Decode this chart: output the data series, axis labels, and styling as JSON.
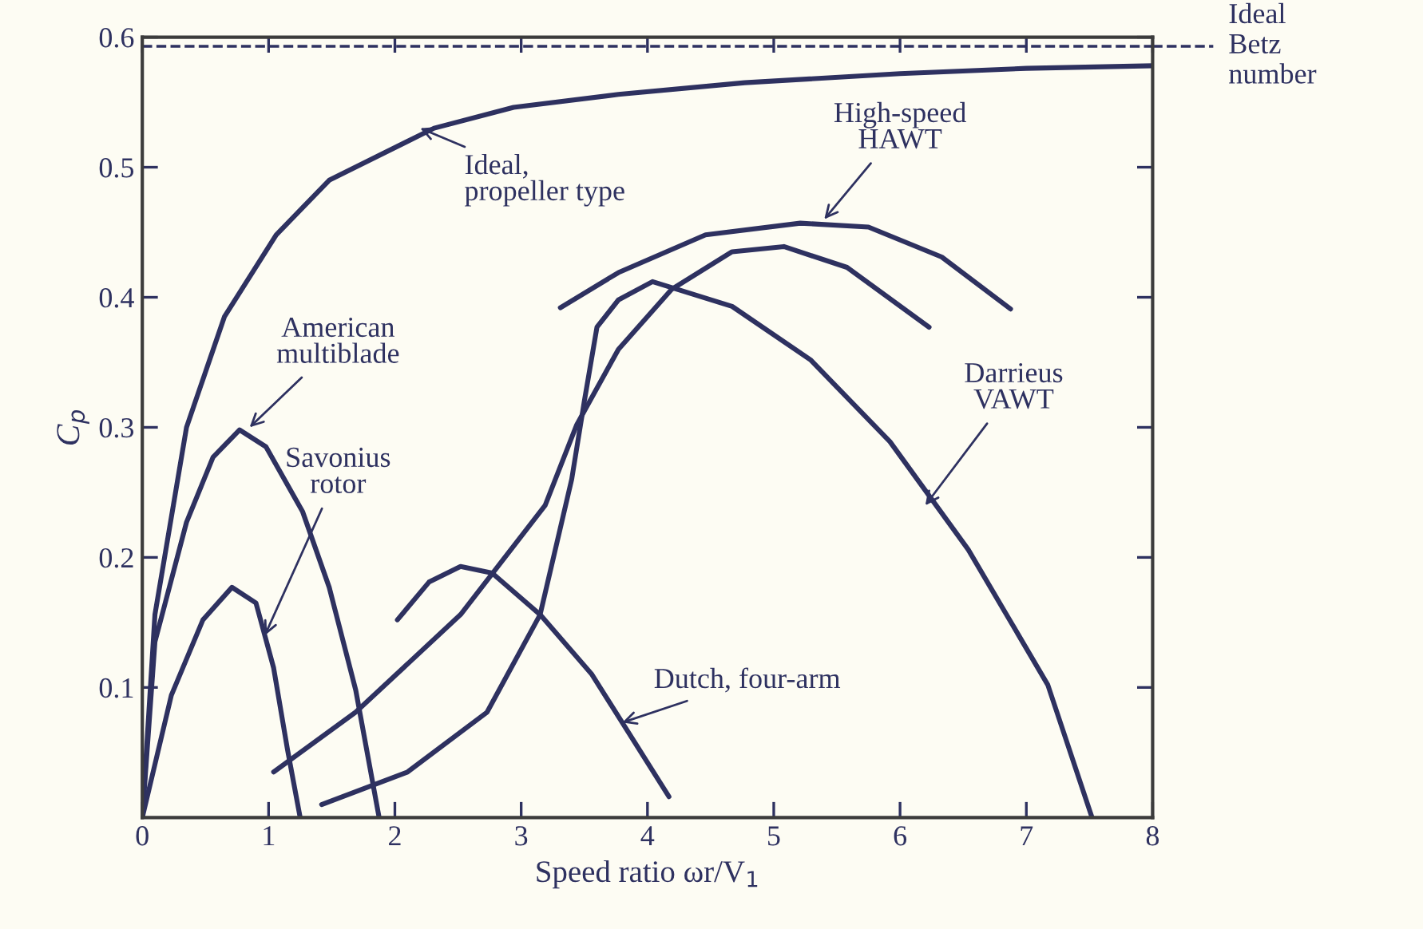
{
  "chart_data": {
    "type": "line",
    "xlabel": "Speed ratio ωr/V$_{1}$",
    "ylabel": "C$_{p}$",
    "xlim": [
      0,
      8
    ],
    "ylim": [
      0,
      0.6
    ],
    "xticks": [
      0,
      1,
      2,
      3,
      4,
      5,
      6,
      7,
      8
    ],
    "yticks": [
      0.1,
      0.2,
      0.3,
      0.4,
      0.5,
      0.6
    ],
    "grid": false,
    "legend": false,
    "marker": "none",
    "line_style": "solid",
    "series": [
      {
        "color": "#2e3160",
        "x": [
          0,
          0.1,
          0.35,
          0.65,
          1.06,
          1.48,
          2.31,
          2.94,
          3.77,
          4.77,
          6,
          7,
          8
        ],
        "values": [
          0,
          0.156,
          0.3,
          0.385,
          0.448,
          0.49,
          0.53,
          0.546,
          0.556,
          0.565,
          0.572,
          0.576,
          0.578
        ]
      },
      {
        "color": "#2e3160",
        "x": [
          0,
          0.1,
          0.35,
          0.56,
          0.77,
          0.98,
          1.27,
          1.48,
          1.69,
          1.875
        ],
        "values": [
          0,
          0.135,
          0.227,
          0.277,
          0.298,
          0.285,
          0.235,
          0.177,
          0.098,
          0
        ]
      },
      {
        "color": "#2e3160",
        "x": [
          0,
          0.23,
          0.48,
          0.71,
          0.9,
          1.04,
          1.15,
          1.25
        ],
        "values": [
          0,
          0.094,
          0.152,
          0.177,
          0.165,
          0.115,
          0.052,
          0
        ]
      },
      {
        "color": "#2e3160",
        "x": [
          2.02,
          2.27,
          2.52,
          2.77,
          3.15,
          3.56,
          4.17
        ],
        "values": [
          0.152,
          0.181,
          0.193,
          0.188,
          0.156,
          0.11,
          0.016
        ]
      },
      {
        "color": "#2e3160",
        "x": [
          3.31,
          3.77,
          4.46,
          5.21,
          5.75,
          6.33,
          6.875
        ],
        "values": [
          0.392,
          0.419,
          0.448,
          0.457,
          0.454,
          0.431,
          0.391
        ]
      },
      {
        "color": "#2e3160",
        "x": [
          1.42,
          2.1,
          2.73,
          3.15,
          3.4,
          3.5,
          3.6,
          3.77,
          4.04,
          4.67,
          5.29,
          5.92,
          6.54,
          7.17,
          7.52
        ],
        "values": [
          0.01,
          0.035,
          0.081,
          0.156,
          0.26,
          0.32,
          0.377,
          0.398,
          0.412,
          0.393,
          0.352,
          0.289,
          0.206,
          0.102,
          0
        ]
      },
      {
        "color": "#2e3160",
        "x": [
          1.04,
          1.69,
          2.52,
          3.19,
          3.44,
          3.77,
          4.19,
          4.67,
          5.08,
          5.58,
          6.23
        ],
        "values": [
          0.035,
          0.081,
          0.156,
          0.24,
          0.302,
          0.36,
          0.406,
          0.435,
          0.439,
          0.423,
          0.377
        ]
      }
    ],
    "ref_lines": [
      {
        "axis": "y",
        "value": 0.593,
        "label": "Ideal\nBetz\nnumber",
        "line_style": "dashed",
        "color": "#2e3160"
      }
    ],
    "annotations": [
      {
        "text": "Ideal,\npropeller type",
        "x": 2.2,
        "y": 0.53
      },
      {
        "text": "American\nmultiblade",
        "x": 0.85,
        "y": 0.3
      },
      {
        "text": "Savonius\nrotor",
        "x": 0.97,
        "y": 0.14
      },
      {
        "text": "Dutch, four-arm",
        "x": 3.8,
        "y": 0.073
      },
      {
        "text": "High-speed\nHAWT",
        "x": 5.4,
        "y": 0.46
      },
      {
        "text": "Darrieus\nVAWT",
        "x": 6.2,
        "y": 0.24
      }
    ]
  }
}
